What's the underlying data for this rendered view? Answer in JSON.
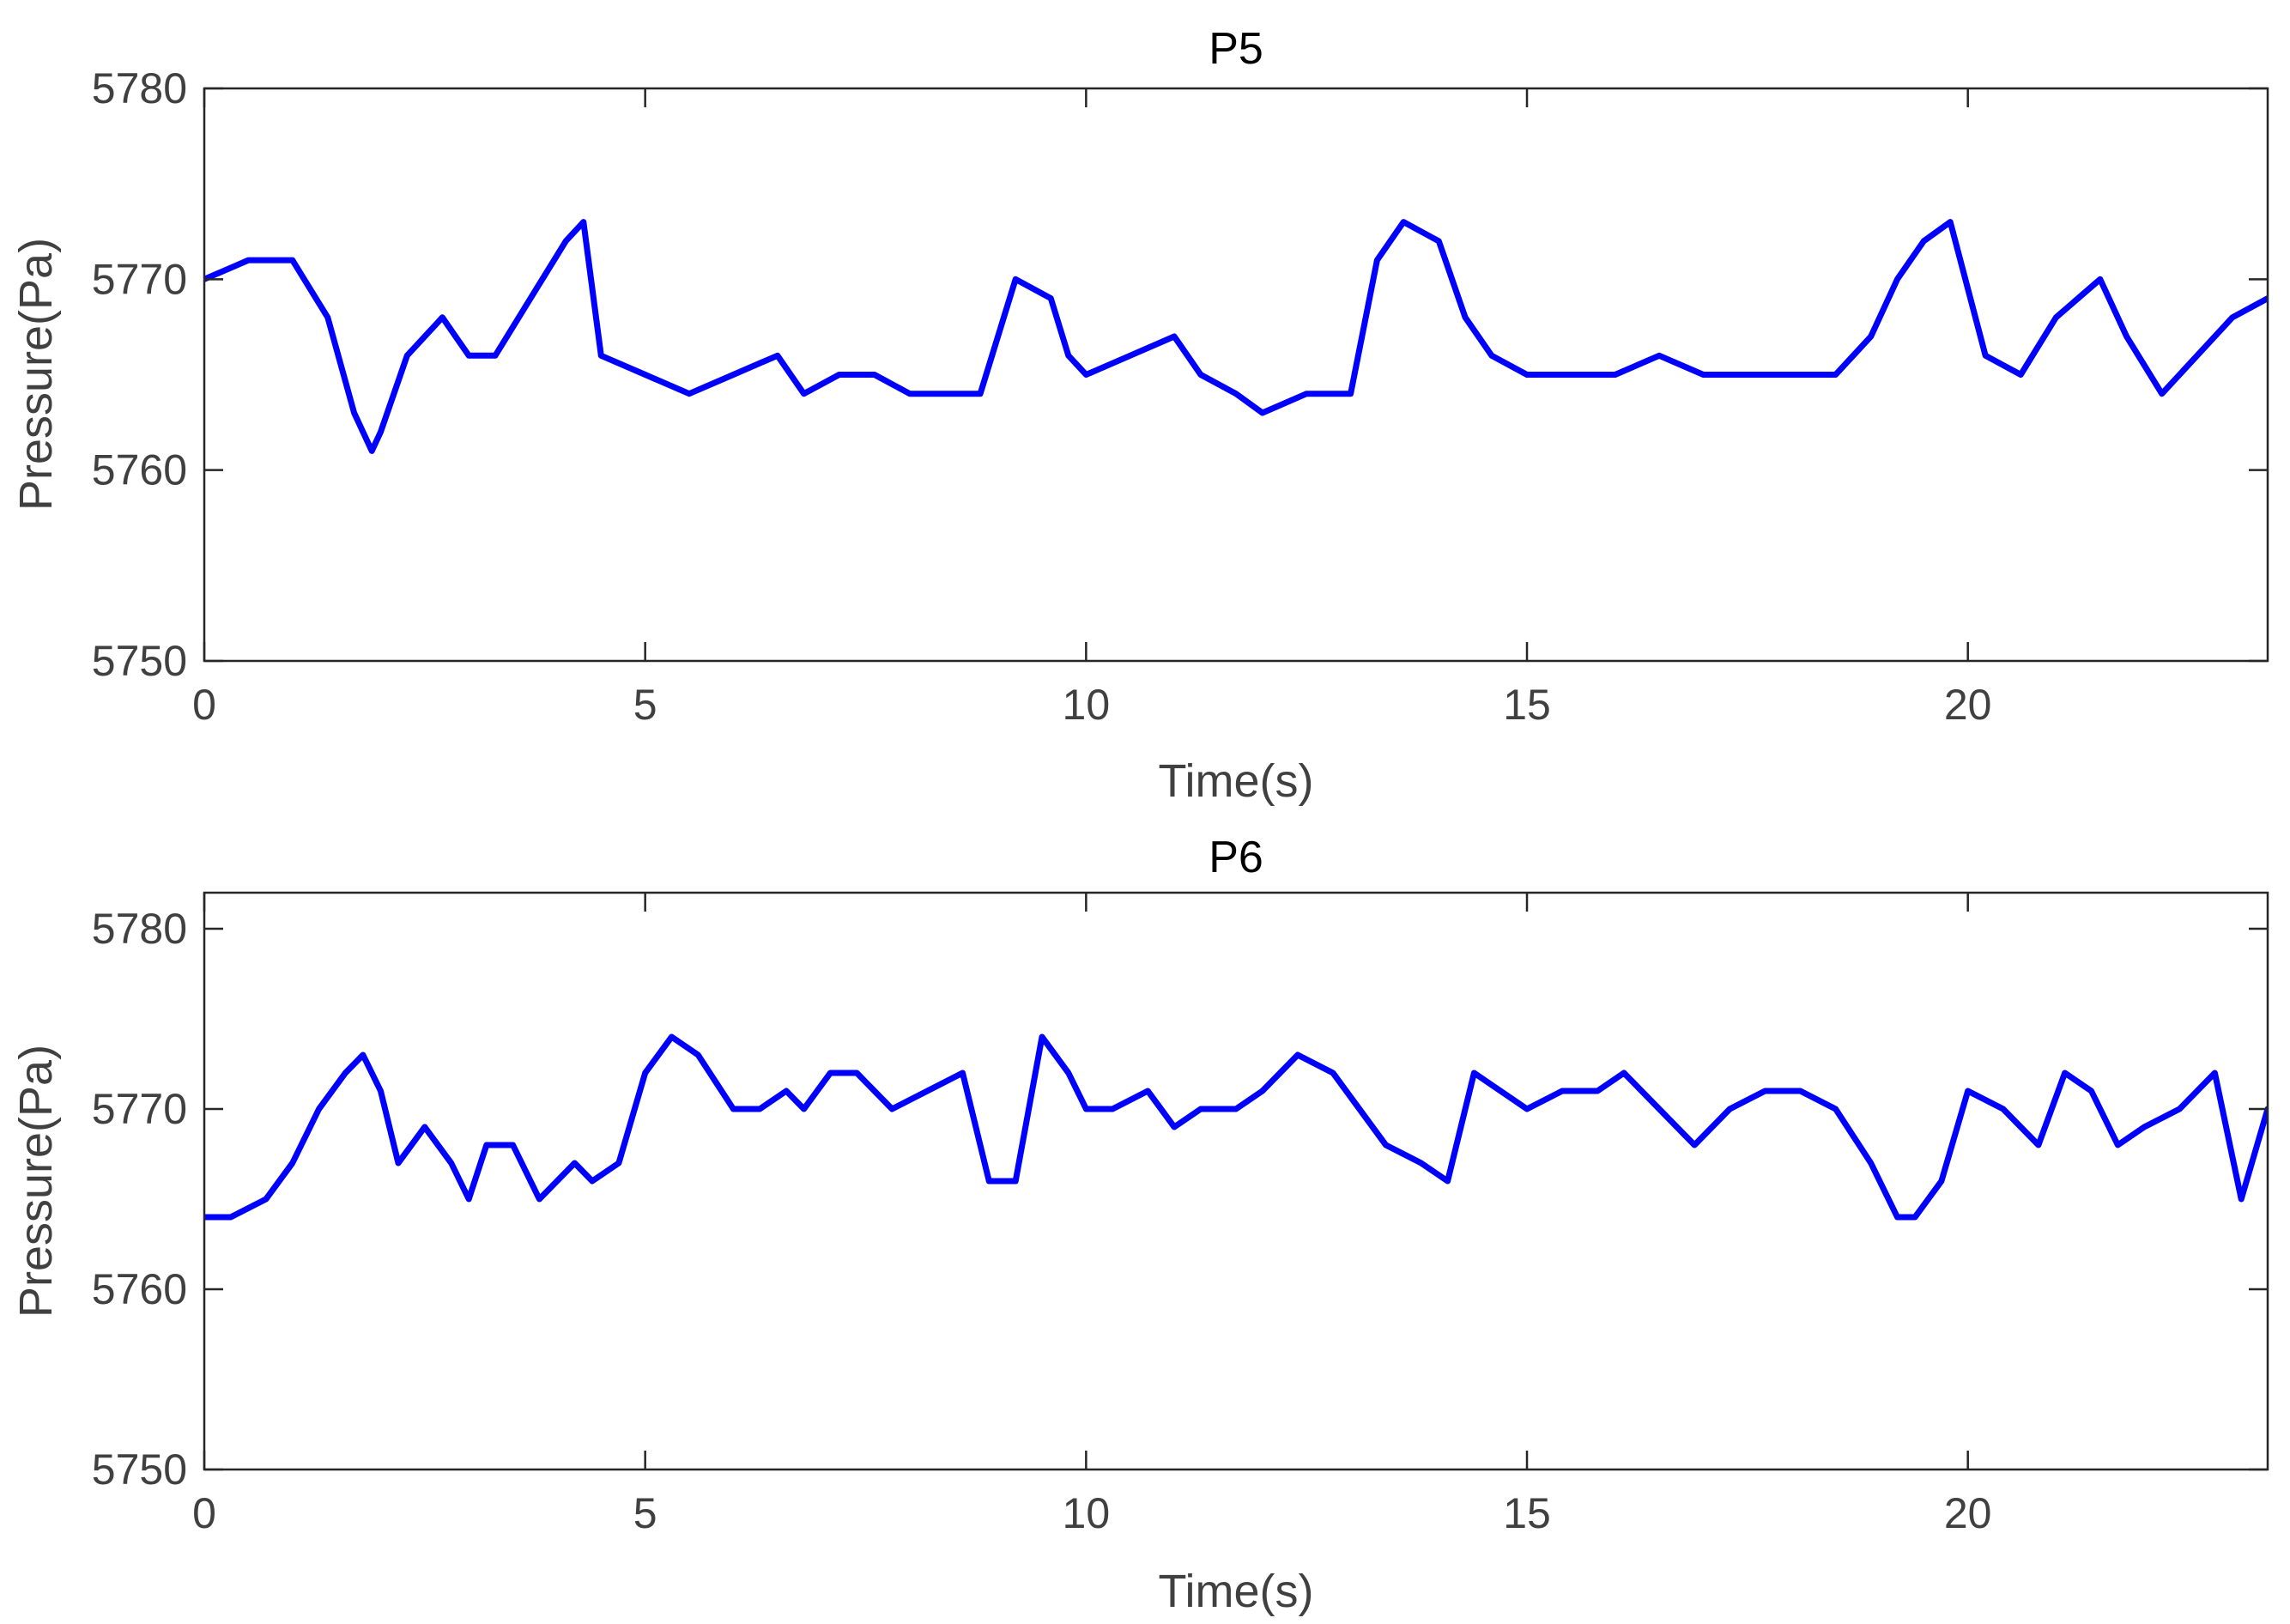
{
  "chart_data": [
    {
      "type": "line",
      "title": "P5",
      "xlabel": "Time(s)",
      "ylabel": "Pressure(Pa)",
      "xlim": [
        0,
        23.4
      ],
      "ylim": [
        5750,
        5780
      ],
      "xticks": [
        0,
        5,
        10,
        15,
        20
      ],
      "yticks": [
        5750,
        5760,
        5770,
        5780
      ],
      "grid": false,
      "series": [
        {
          "color": "#0000ff",
          "x": [
            0,
            0.5,
            1.0,
            1.4,
            1.7,
            1.9,
            2.0,
            2.3,
            2.7,
            3.0,
            3.3,
            3.7,
            4.1,
            4.3,
            4.5,
            5.0,
            5.5,
            6.0,
            6.5,
            6.8,
            7.2,
            7.6,
            8.0,
            8.5,
            8.8,
            9.2,
            9.6,
            9.8,
            10.0,
            10.5,
            11.0,
            11.3,
            11.7,
            12.0,
            12.5,
            13.0,
            13.3,
            13.6,
            14.0,
            14.3,
            14.6,
            15.0,
            15.5,
            16.0,
            16.5,
            17.0,
            17.5,
            18.0,
            18.5,
            18.9,
            19.2,
            19.5,
            19.8,
            20.2,
            20.6,
            21.0,
            21.5,
            21.8,
            22.2,
            22.6,
            23.0,
            23.4
          ],
          "y": [
            5770,
            5771,
            5771,
            5768,
            5763,
            5761,
            5762,
            5766,
            5768,
            5766,
            5766,
            5769,
            5772,
            5773,
            5766,
            5765,
            5764,
            5765,
            5766,
            5764,
            5765,
            5765,
            5764,
            5764,
            5764,
            5770,
            5769,
            5766,
            5765,
            5766,
            5767,
            5765,
            5764,
            5763,
            5764,
            5764,
            5771,
            5773,
            5772,
            5768,
            5766,
            5765,
            5765,
            5765,
            5766,
            5765,
            5765,
            5765,
            5765,
            5767,
            5770,
            5772,
            5773,
            5766,
            5765,
            5768,
            5770,
            5767,
            5764,
            5766,
            5768,
            5769
          ]
        }
      ]
    },
    {
      "type": "line",
      "title": "P6",
      "xlabel": "Time(s)",
      "ylabel": "Pressure(Pa)",
      "xlim": [
        0,
        23.4
      ],
      "ylim": [
        5750,
        5782
      ],
      "xticks": [
        0,
        5,
        10,
        15,
        20
      ],
      "yticks": [
        5750,
        5760,
        5770,
        5780
      ],
      "grid": false,
      "series": [
        {
          "color": "#0000ff",
          "x": [
            0,
            0.3,
            0.7,
            1.0,
            1.3,
            1.6,
            1.8,
            2.0,
            2.2,
            2.5,
            2.8,
            3.0,
            3.2,
            3.5,
            3.8,
            4.2,
            4.4,
            4.7,
            5.0,
            5.3,
            5.6,
            6.0,
            6.3,
            6.6,
            6.8,
            7.1,
            7.4,
            7.8,
            8.2,
            8.6,
            8.9,
            9.2,
            9.5,
            9.8,
            10.0,
            10.3,
            10.7,
            11.0,
            11.3,
            11.7,
            12.0,
            12.4,
            12.8,
            13.1,
            13.4,
            13.8,
            14.1,
            14.4,
            14.7,
            15.0,
            15.4,
            15.8,
            16.1,
            16.5,
            16.9,
            17.3,
            17.7,
            18.1,
            18.5,
            18.9,
            19.2,
            19.4,
            19.7,
            20.0,
            20.4,
            20.8,
            21.1,
            21.4,
            21.7,
            22.0,
            22.4,
            22.8,
            23.1,
            23.4
          ],
          "y": [
            5764,
            5764,
            5765,
            5767,
            5770,
            5772,
            5773,
            5771,
            5767,
            5769,
            5767,
            5765,
            5768,
            5768,
            5765,
            5767,
            5766,
            5767,
            5772,
            5774,
            5773,
            5770,
            5770,
            5771,
            5770,
            5772,
            5772,
            5770,
            5771,
            5772,
            5766,
            5766,
            5774,
            5772,
            5770,
            5770,
            5771,
            5769,
            5770,
            5770,
            5771,
            5773,
            5772,
            5770,
            5768,
            5767,
            5766,
            5772,
            5771,
            5770,
            5771,
            5771,
            5772,
            5770,
            5768,
            5770,
            5771,
            5771,
            5770,
            5767,
            5764,
            5764,
            5766,
            5771,
            5770,
            5768,
            5772,
            5771,
            5768,
            5769,
            5770,
            5772,
            5765,
            5770
          ]
        }
      ]
    }
  ]
}
